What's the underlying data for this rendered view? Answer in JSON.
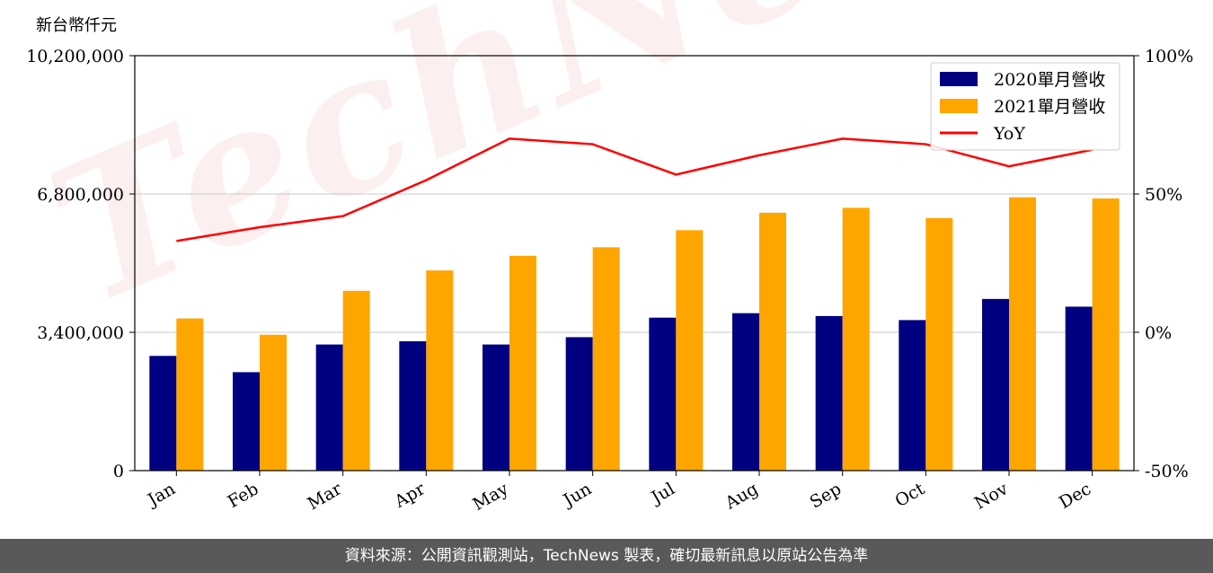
{
  "chart_data": {
    "type": "bar",
    "unit_label": "新台幣仟元",
    "categories": [
      "Jan",
      "Feb",
      "Mar",
      "Apr",
      "May",
      "Jun",
      "Jul",
      "Aug",
      "Sep",
      "Oct",
      "Nov",
      "Dec"
    ],
    "series": [
      {
        "name": "2020單月營收",
        "type": "bar",
        "axis": "left",
        "color": "#000080",
        "values": [
          2820000,
          2420000,
          3100000,
          3180000,
          3100000,
          3280000,
          3760000,
          3870000,
          3800000,
          3700000,
          4220000,
          4030000
        ]
      },
      {
        "name": "2021單月營收",
        "type": "bar",
        "axis": "left",
        "color": "#FFA500",
        "values": [
          3740000,
          3340000,
          4420000,
          4920000,
          5280000,
          5490000,
          5910000,
          6340000,
          6460000,
          6210000,
          6720000,
          6690000
        ]
      },
      {
        "name": "YoY",
        "type": "line",
        "axis": "right",
        "color": "#FF0000",
        "values": [
          33,
          38,
          42,
          55,
          70,
          68,
          57,
          64,
          70,
          68,
          60,
          66
        ]
      }
    ],
    "y_left": {
      "ylim": [
        0,
        10200000
      ],
      "ticks": [
        "0",
        "3,400,000",
        "6,800,000",
        "10,200,000"
      ],
      "tick_values": [
        0,
        3400000,
        6800000,
        10200000
      ]
    },
    "y_right": {
      "ylim": [
        -50,
        100
      ],
      "ticks": [
        "-50%",
        "0%",
        "50%",
        "100%"
      ],
      "tick_values": [
        -50,
        0,
        50,
        100
      ]
    },
    "grid": "horizontal",
    "legend_position": "top-right",
    "watermark": "TechNews"
  },
  "footer": {
    "source": "資料來源：公開資訊觀測站，TechNews 製表，確切最新訊息以原站公告為準"
  }
}
